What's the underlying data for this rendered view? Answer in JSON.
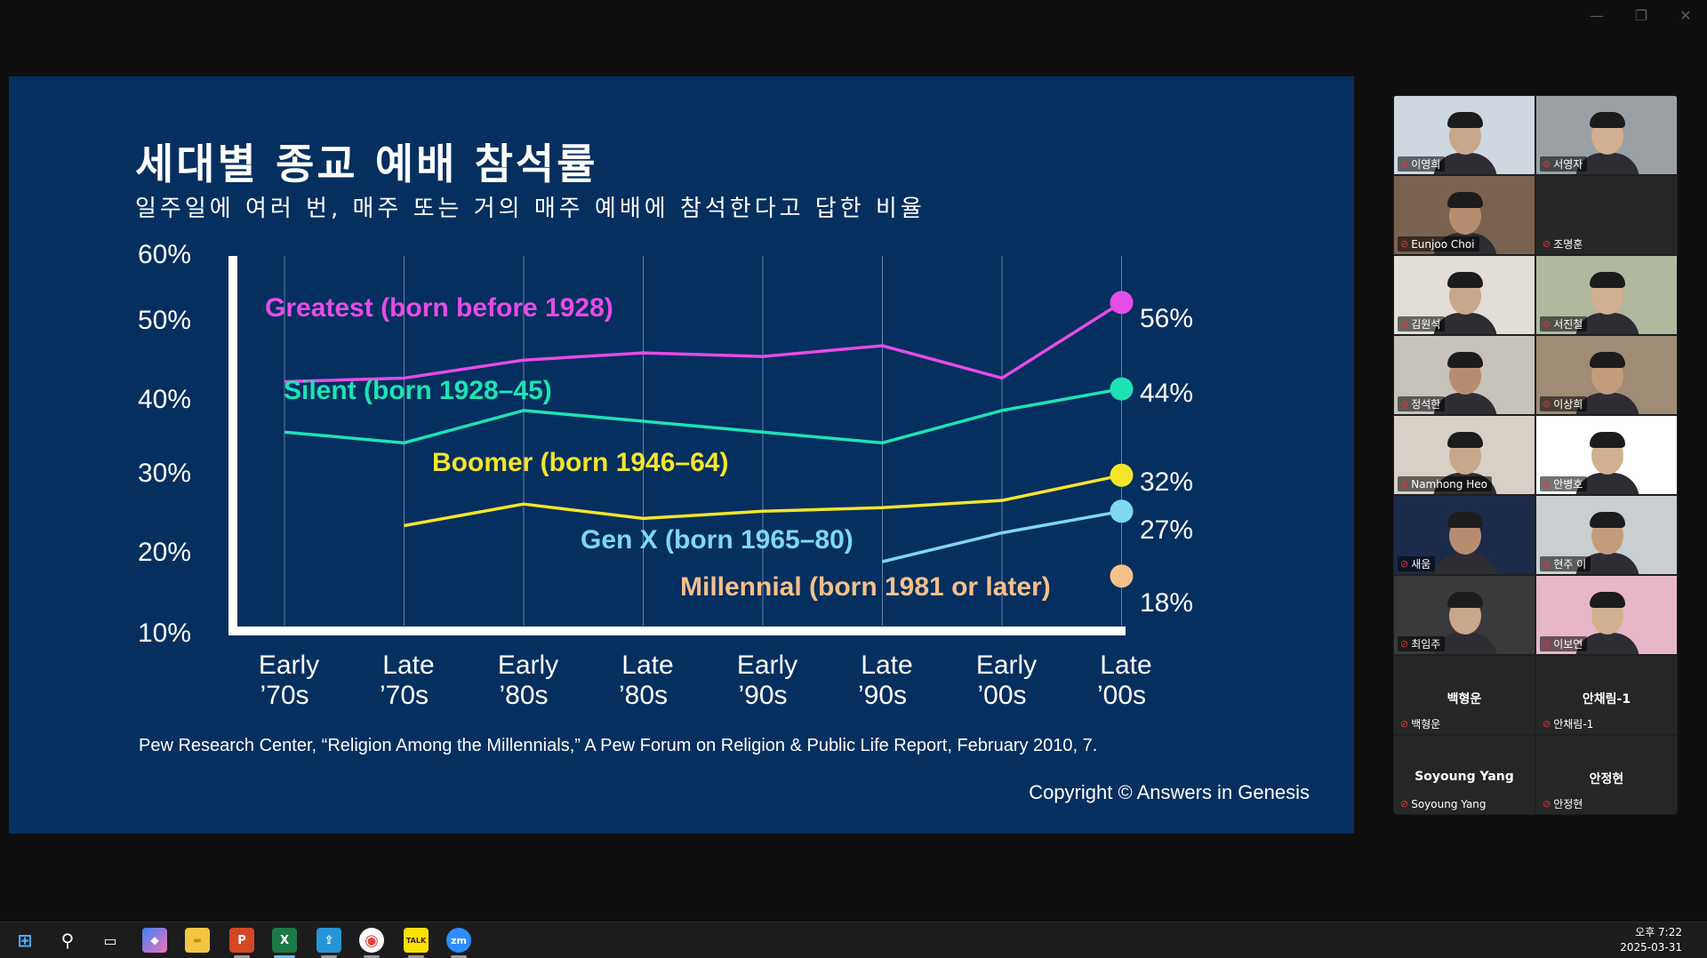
{
  "window": {
    "controls": [
      "—",
      "❐",
      "✕"
    ]
  },
  "slide": {
    "title": "세대별 종교 예배 참석률",
    "subtitle": "일주일에 여러 번, 매주 또는 거의 매주 예배에 참석한다고 답한 비율",
    "source": "Pew Research Center, “Religion Among the Millennials,” A Pew Forum on Religion & Public Life Report, February 2010, 7.",
    "copyright": "Copyright © Answers in Genesis"
  },
  "chart_data": {
    "type": "line",
    "title": "세대별 종교 예배 참석률",
    "subtitle": "일주일에 여러 번, 매주 또는 거의 매주 예배에 참석한다고 답한 비율",
    "x_labels": [
      [
        "Early",
        "’70s"
      ],
      [
        "Late",
        "’70s"
      ],
      [
        "Early",
        "’80s"
      ],
      [
        "Late",
        "’80s"
      ],
      [
        "Early",
        "’90s"
      ],
      [
        "Late",
        "’90s"
      ],
      [
        "Early",
        "’00s"
      ],
      [
        "Late",
        "’00s"
      ]
    ],
    "y_ticks": [
      "60%",
      "50%",
      "40%",
      "30%",
      "20%",
      "10%"
    ],
    "ylim": [
      10,
      60
    ],
    "y_tick_values": [
      60,
      50,
      40,
      30,
      20,
      10
    ],
    "grid": "vertical",
    "series": [
      {
        "name": "Greatest (born before 1928)",
        "color": "#e64ce6",
        "values": [
          45,
          45.5,
          48,
          49,
          48.5,
          50,
          45.5,
          56
        ],
        "end_label": "56%"
      },
      {
        "name": "Silent (born 1928–45)",
        "color": "#1de3b4",
        "values": [
          38,
          36.5,
          41,
          39.5,
          38,
          36.5,
          41,
          44
        ],
        "end_label": "44%"
      },
      {
        "name": "Boomer (born 1946–64)",
        "color": "#f4e52a",
        "values": [
          null,
          25,
          28,
          26,
          27,
          27.5,
          28.5,
          32
        ],
        "end_label": "32%"
      },
      {
        "name": "Gen X (born 1965–80)",
        "color": "#7fd8f0",
        "values": [
          null,
          null,
          null,
          null,
          null,
          20,
          24,
          27
        ],
        "end_label": "27%"
      },
      {
        "name": "Millennial (born 1981 or later)",
        "color": "#f6c089",
        "values": [
          null,
          null,
          null,
          null,
          null,
          null,
          null,
          18
        ],
        "end_label": "18%"
      }
    ]
  },
  "participants": [
    {
      "name": "이영희",
      "video": true
    },
    {
      "name": "서영자",
      "video": true
    },
    {
      "name": "Eunjoo Choi",
      "video": true
    },
    {
      "name": "조명훈",
      "video": false,
      "show_center": false
    },
    {
      "name": "김원석",
      "video": true,
      "active": true
    },
    {
      "name": "서진철",
      "video": true
    },
    {
      "name": "정석한",
      "video": true
    },
    {
      "name": "이상희",
      "video": true
    },
    {
      "name": "Namhong Heo",
      "video": true
    },
    {
      "name": "안병호",
      "video": true
    },
    {
      "name": "새움",
      "video": true
    },
    {
      "name": "현주 이",
      "video": true
    },
    {
      "name": "최임주",
      "video": true
    },
    {
      "name": "이보연",
      "video": true
    },
    {
      "name": "백형운",
      "video": false,
      "show_center": true
    },
    {
      "name": "안채림-1",
      "video": false,
      "show_center": true
    },
    {
      "name": "Soyoung Yang",
      "video": false,
      "show_center": true
    },
    {
      "name": "안정현",
      "video": false,
      "show_center": true
    }
  ],
  "taskbar": {
    "apps": [
      {
        "icon": "windows-start-icon",
        "label": "⊞"
      },
      {
        "icon": "search-icon",
        "label": "⚲"
      },
      {
        "icon": "task-view-icon",
        "label": "▭"
      },
      {
        "icon": "copilot-icon",
        "label": "◆"
      },
      {
        "icon": "file-explorer-icon",
        "label": "▬"
      },
      {
        "icon": "powerpoint-icon",
        "label": "P"
      },
      {
        "icon": "excel-icon",
        "label": "X"
      },
      {
        "icon": "app-blue-icon",
        "label": "⇪"
      },
      {
        "icon": "chrome-icon",
        "label": "◉"
      },
      {
        "icon": "kakaotalk-icon",
        "label": "TALK"
      },
      {
        "icon": "zoom-icon",
        "label": "zm"
      }
    ],
    "time": "오후 7:22",
    "date": "2025-03-31"
  }
}
